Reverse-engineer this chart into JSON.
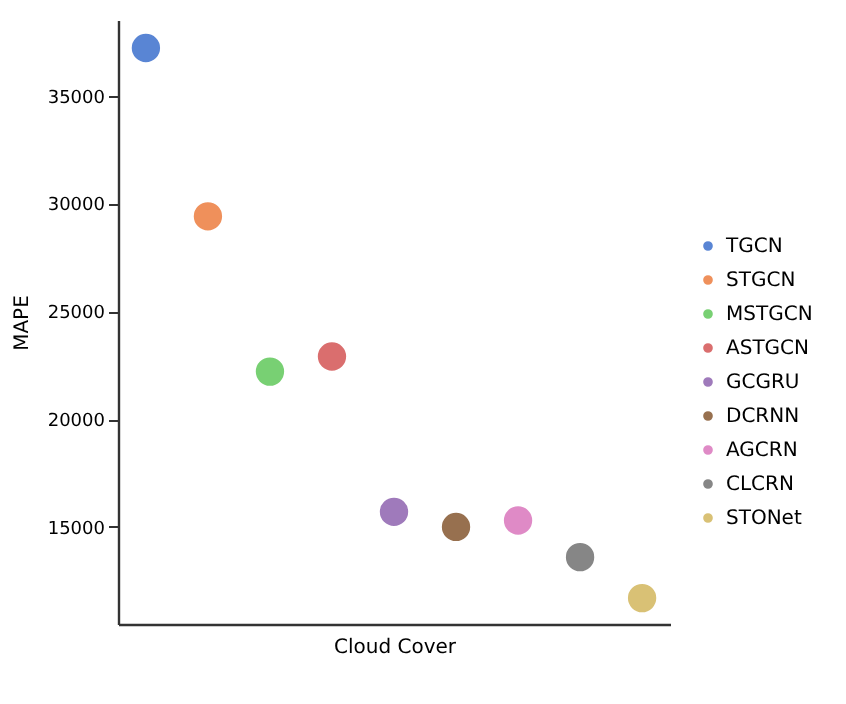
{
  "chart_data": {
    "type": "scatter",
    "xlabel": "Cloud Cover",
    "ylabel": "MAPE",
    "categories": [
      null,
      null,
      null,
      null,
      null,
      null,
      null,
      null,
      null
    ],
    "series": [
      {
        "name": "TGCN",
        "color": "#4878d0",
        "values": [
          37200,
          null,
          null,
          null,
          null,
          null,
          null,
          null,
          null
        ]
      },
      {
        "name": "STGCN",
        "color": "#ee854a",
        "values": [
          null,
          29400,
          null,
          null,
          null,
          null,
          null,
          null,
          null
        ]
      },
      {
        "name": "MSTGCN",
        "color": "#6acc64",
        "values": [
          null,
          null,
          22200,
          null,
          null,
          null,
          null,
          null,
          null
        ]
      },
      {
        "name": "ASTGCN",
        "color": "#d65f5f",
        "values": [
          null,
          null,
          null,
          22900,
          null,
          null,
          null,
          null,
          null
        ]
      },
      {
        "name": "GCGRU",
        "color": "#956cb4",
        "values": [
          null,
          null,
          null,
          null,
          15700,
          null,
          null,
          null,
          null
        ]
      },
      {
        "name": "DCRNN",
        "color": "#8c613c",
        "values": [
          null,
          null,
          null,
          null,
          null,
          15000,
          null,
          null,
          null
        ]
      },
      {
        "name": "AGCRN",
        "color": "#dc7ec0",
        "values": [
          null,
          null,
          null,
          null,
          null,
          null,
          15300,
          null,
          null
        ]
      },
      {
        "name": "CLCRN",
        "color": "#797979",
        "values": [
          null,
          null,
          null,
          null,
          null,
          null,
          null,
          13600,
          null
        ]
      },
      {
        "name": "STONet",
        "color": "#d5bb67",
        "values": [
          null,
          null,
          null,
          null,
          null,
          null,
          null,
          null,
          11700
        ]
      }
    ],
    "ylim": [
      10500,
      38500
    ],
    "yticks": [
      15000,
      20000,
      25000,
      30000,
      35000
    ],
    "grid": false,
    "legend": "right",
    "marker": "circle",
    "tick_labels": "y"
  }
}
